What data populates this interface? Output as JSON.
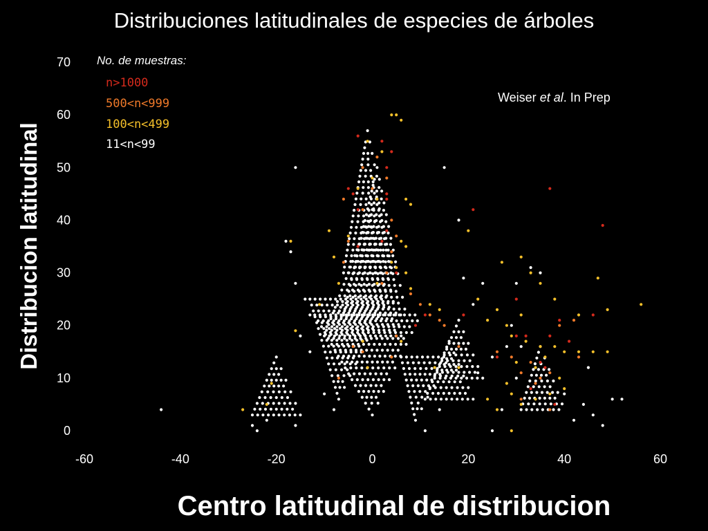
{
  "chart_data": {
    "type": "scatter",
    "title": "Distribuciones latitudinales de especies de árboles",
    "xlabel": "Centro latitudinal de distribucion",
    "ylabel": "Distribucion latitudinal",
    "xlim": [
      -60,
      60
    ],
    "ylim": [
      0,
      70
    ],
    "x_ticks": [
      "-60",
      "-40",
      "-20",
      "0",
      "20",
      "40",
      "60"
    ],
    "y_ticks": [
      "0",
      "10",
      "20",
      "30",
      "40",
      "50",
      "60",
      "70"
    ],
    "grid": false,
    "legend_placement": "top-left",
    "annotation": {
      "pre": "Weiser ",
      "em": "et al",
      "post": ". In Prep"
    },
    "legend": {
      "title": "No. de muestras:",
      "items": [
        {
          "label": "n>1000",
          "color": "#d42a1c"
        },
        {
          "label": "500<n<999",
          "color": "#f07a2a"
        },
        {
          "label": "100<n<499",
          "color": "#f5c02a"
        },
        {
          "label": "11<n<99",
          "color": "#ffffff"
        }
      ]
    },
    "series": [
      {
        "name": "n>1000",
        "color": "#d42a1c",
        "points": [
          [
            -3,
            56
          ],
          [
            2,
            55
          ],
          [
            4,
            53
          ],
          [
            3,
            50
          ],
          [
            -4,
            45
          ],
          [
            -5,
            46
          ],
          [
            3,
            45
          ],
          [
            3,
            44
          ],
          [
            -3,
            42
          ],
          [
            3,
            38
          ],
          [
            2,
            36
          ],
          [
            -3,
            35
          ],
          [
            21,
            42
          ],
          [
            37,
            46
          ],
          [
            48,
            39
          ],
          [
            5,
            30
          ],
          [
            11,
            22
          ],
          [
            9,
            20
          ],
          [
            19,
            22
          ],
          [
            30,
            25
          ],
          [
            30,
            18
          ],
          [
            39,
            21
          ],
          [
            32,
            18
          ],
          [
            37,
            18
          ],
          [
            26,
            14
          ],
          [
            46,
            22
          ],
          [
            35,
            13
          ],
          [
            36,
            12
          ],
          [
            38,
            5
          ],
          [
            41,
            17
          ],
          [
            33,
            8
          ]
        ]
      },
      {
        "name": "500<n<999",
        "color": "#f07a2a",
        "points": [
          [
            1,
            52
          ],
          [
            -2,
            50
          ],
          [
            3,
            48
          ],
          [
            0,
            46
          ],
          [
            -6,
            44
          ],
          [
            -2,
            42
          ],
          [
            4,
            40
          ],
          [
            5,
            37
          ],
          [
            -5,
            36
          ],
          [
            4,
            34
          ],
          [
            -6,
            32
          ],
          [
            3,
            30
          ],
          [
            2,
            28
          ],
          [
            8,
            26
          ],
          [
            10,
            24
          ],
          [
            12,
            22
          ],
          [
            14,
            21
          ],
          [
            15,
            20
          ],
          [
            18,
            16
          ],
          [
            26,
            15
          ],
          [
            29,
            14
          ],
          [
            33,
            13
          ],
          [
            31,
            11
          ],
          [
            35,
            10
          ],
          [
            34,
            9
          ],
          [
            37,
            11
          ],
          [
            39,
            20
          ],
          [
            42,
            21
          ],
          [
            43,
            14
          ],
          [
            31,
            6
          ],
          [
            37,
            4
          ],
          [
            5,
            18
          ],
          [
            4,
            14
          ],
          [
            -2,
            15
          ],
          [
            -4,
            16
          ],
          [
            -7,
            10
          ]
        ]
      },
      {
        "name": "100<n<499",
        "color": "#f5c02a",
        "points": [
          [
            4,
            60
          ],
          [
            5,
            60
          ],
          [
            6,
            59
          ],
          [
            -1,
            55
          ],
          [
            2,
            53
          ],
          [
            0,
            48
          ],
          [
            -3,
            46
          ],
          [
            1,
            44
          ],
          [
            7,
            44
          ],
          [
            8,
            43
          ],
          [
            -9,
            38
          ],
          [
            -5,
            37
          ],
          [
            6,
            36
          ],
          [
            7,
            35
          ],
          [
            -8,
            33
          ],
          [
            4,
            32
          ],
          [
            5,
            31
          ],
          [
            7,
            30
          ],
          [
            -7,
            28
          ],
          [
            1,
            28
          ],
          [
            8,
            27
          ],
          [
            -11,
            24
          ],
          [
            12,
            24
          ],
          [
            14,
            23
          ],
          [
            -16,
            19
          ],
          [
            -17,
            36
          ],
          [
            20,
            38
          ],
          [
            22,
            25
          ],
          [
            24,
            21
          ],
          [
            26,
            23
          ],
          [
            27,
            32
          ],
          [
            31,
            33
          ],
          [
            33,
            30
          ],
          [
            35,
            28
          ],
          [
            38,
            25
          ],
          [
            43,
            22
          ],
          [
            47,
            29
          ],
          [
            49,
            23
          ],
          [
            56,
            24
          ],
          [
            31,
            22
          ],
          [
            28,
            20
          ],
          [
            29,
            18
          ],
          [
            32,
            17
          ],
          [
            35,
            16
          ],
          [
            38,
            16
          ],
          [
            40,
            15
          ],
          [
            43,
            15
          ],
          [
            46,
            15
          ],
          [
            49,
            15
          ],
          [
            30,
            13
          ],
          [
            34,
            12
          ],
          [
            36,
            14
          ],
          [
            39,
            10
          ],
          [
            28,
            9
          ],
          [
            29,
            7
          ],
          [
            31,
            5
          ],
          [
            34,
            6
          ],
          [
            37,
            7
          ],
          [
            40,
            8
          ],
          [
            26,
            4
          ],
          [
            29,
            0
          ],
          [
            -22,
            5
          ],
          [
            -27,
            4
          ],
          [
            -21,
            9
          ],
          [
            4,
            14
          ],
          [
            6,
            17
          ],
          [
            -1,
            12
          ],
          [
            -2,
            17
          ],
          [
            13,
            12
          ],
          [
            18,
            12
          ],
          [
            24,
            6
          ]
        ]
      },
      {
        "name": "11<n<99",
        "color": "#ffffff",
        "shapes": [
          {
            "apex": [
              -1,
              57
            ],
            "base_y": 30,
            "base_x": [
              -6,
              5
            ],
            "step": 1.1
          },
          {
            "apex": [
              1,
              50
            ],
            "base_y": 22,
            "base_x": [
              -6,
              7
            ],
            "step": 1.1
          },
          {
            "apex": [
              0,
              42
            ],
            "base_y": 18,
            "base_x": [
              -10,
              6
            ],
            "step": 1.1
          },
          {
            "apex": [
              0,
              3
            ],
            "base_y": 22,
            "base_x": [
              -12,
              10
            ],
            "step": 1.1
          },
          {
            "apex": [
              -7,
              6
            ],
            "base_y": 25,
            "base_x": [
              -13,
              3
            ],
            "step": 1.1
          },
          {
            "apex": [
              9,
              2
            ],
            "base_y": 14,
            "base_x": [
              6,
              16
            ],
            "step": 1.1
          },
          {
            "apex": [
              16,
              17
            ],
            "base_y": 6,
            "base_x": [
              11,
              21
            ],
            "step": 1.1
          },
          {
            "apex": [
              18,
              21
            ],
            "base_y": 10,
            "base_x": [
              13,
              23
            ],
            "step": 1.1
          },
          {
            "apex": [
              -20,
              14
            ],
            "base_y": 3,
            "base_x": [
              -25,
              -15
            ],
            "step": 1.1
          },
          {
            "apex": [
              35,
              16
            ],
            "base_y": 4,
            "base_x": [
              31,
              40
            ],
            "step": 1.1
          }
        ],
        "points": [
          [
            -16,
            50
          ],
          [
            -18,
            36
          ],
          [
            -17,
            34
          ],
          [
            -44,
            4
          ],
          [
            -16,
            1
          ],
          [
            11,
            0
          ],
          [
            25,
            0
          ],
          [
            29,
            20
          ],
          [
            30,
            28
          ],
          [
            33,
            31
          ],
          [
            35,
            30
          ],
          [
            44,
            5
          ],
          [
            45,
            12
          ],
          [
            46,
            3
          ],
          [
            48,
            1
          ],
          [
            50,
            6
          ],
          [
            52,
            6
          ],
          [
            18,
            40
          ],
          [
            15,
            50
          ],
          [
            -13,
            15
          ],
          [
            -15,
            18
          ],
          [
            -13,
            22
          ],
          [
            -14,
            25
          ],
          [
            -16,
            28
          ],
          [
            19,
            29
          ],
          [
            21,
            24
          ],
          [
            23,
            28
          ],
          [
            30,
            10
          ],
          [
            40,
            7
          ],
          [
            42,
            2
          ],
          [
            25,
            14
          ],
          [
            22,
            11
          ],
          [
            -10,
            7
          ],
          [
            -8,
            4
          ],
          [
            14,
            4
          ],
          [
            12,
            8
          ],
          [
            -25,
            1
          ],
          [
            -24,
            0
          ],
          [
            -22,
            2
          ],
          [
            28,
            16
          ],
          [
            31,
            16
          ],
          [
            27,
            4
          ]
        ]
      }
    ]
  }
}
